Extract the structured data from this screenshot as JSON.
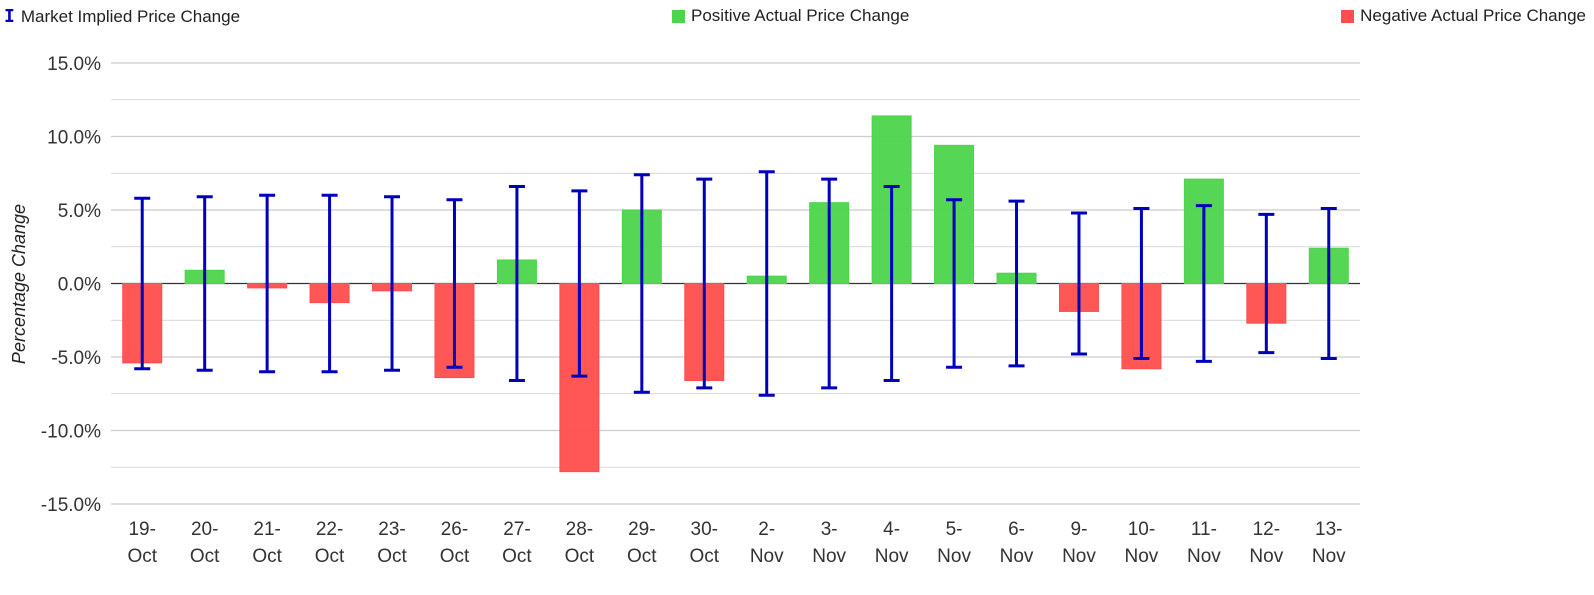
{
  "legend": {
    "implied_label": "Market Implied Price Change",
    "positive_label": "Positive Actual Price Change",
    "negative_label": "Negative Actual Price Change",
    "implied_glyph": "I"
  },
  "colors": {
    "positive": "#4cd44c",
    "negative": "#ff4d4d",
    "implied": "#0000bb",
    "grid": "#cccccc",
    "zero_line": "#333333"
  },
  "chart_data": {
    "type": "bar",
    "ylabel": "Percentage Change",
    "xlabel": "",
    "ylim": [
      -15,
      15
    ],
    "yticks": [
      15,
      10,
      5,
      0,
      -5,
      -10,
      -15
    ],
    "ytick_labels": [
      "15.0%",
      "10.0%",
      "5.0%",
      "0.0%",
      "-5.0%",
      "-10.0%",
      "-15.0%"
    ],
    "grid": true,
    "legend_position": "top",
    "categories": [
      [
        "19-",
        "Oct"
      ],
      [
        "20-",
        "Oct"
      ],
      [
        "21-",
        "Oct"
      ],
      [
        "22-",
        "Oct"
      ],
      [
        "23-",
        "Oct"
      ],
      [
        "26-",
        "Oct"
      ],
      [
        "27-",
        "Oct"
      ],
      [
        "28-",
        "Oct"
      ],
      [
        "29-",
        "Oct"
      ],
      [
        "30-",
        "Oct"
      ],
      [
        "2-",
        "Nov"
      ],
      [
        "3-",
        "Nov"
      ],
      [
        "4-",
        "Nov"
      ],
      [
        "5-",
        "Nov"
      ],
      [
        "6-",
        "Nov"
      ],
      [
        "9-",
        "Nov"
      ],
      [
        "10-",
        "Nov"
      ],
      [
        "11-",
        "Nov"
      ],
      [
        "12-",
        "Nov"
      ],
      [
        "13-",
        "Nov"
      ]
    ],
    "series": [
      {
        "name": "Actual Price Change",
        "values": [
          -5.4,
          0.9,
          -0.3,
          -1.3,
          -0.5,
          -6.4,
          1.6,
          -12.8,
          5.0,
          -6.6,
          0.5,
          5.5,
          11.4,
          9.4,
          0.7,
          -1.9,
          -5.8,
          7.1,
          -2.7,
          2.4
        ]
      },
      {
        "name": "Market Implied Price Change",
        "values": [
          5.8,
          5.9,
          6.0,
          6.0,
          5.9,
          5.7,
          6.6,
          6.3,
          7.4,
          7.1,
          7.6,
          7.1,
          6.6,
          5.7,
          5.6,
          4.8,
          5.1,
          5.3,
          4.7,
          5.1
        ]
      }
    ]
  }
}
